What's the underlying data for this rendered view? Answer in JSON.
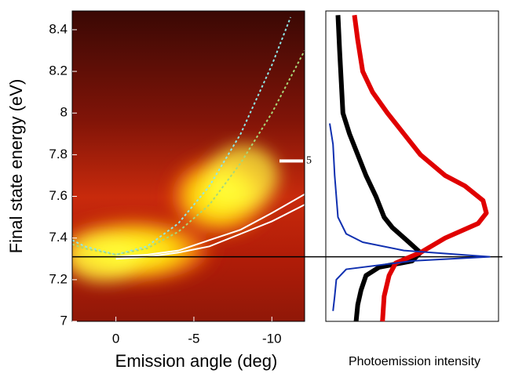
{
  "chart_data": [
    {
      "type": "line",
      "y_label": "Final state energy (eV)",
      "x_label": "Emission angle (deg)",
      "xlim": [
        2.8,
        -12.1
      ],
      "ylim": [
        7.0,
        8.49
      ],
      "xticks": [
        0,
        -5,
        -10
      ],
      "yticks": [
        7.0,
        7.2,
        7.4,
        7.6,
        7.8,
        8.0,
        8.2,
        8.4
      ],
      "hline": 7.31,
      "annotation": {
        "text": "5",
        "y": 7.77
      },
      "series": [
        {
          "color": "#8fe8e8",
          "dashed": true,
          "x": [
            2.8,
            2,
            0,
            -2,
            -4,
            -6,
            -8,
            -10,
            -11.2
          ],
          "values": [
            7.39,
            7.36,
            7.32,
            7.36,
            7.47,
            7.65,
            7.9,
            8.23,
            8.46
          ]
        },
        {
          "color": "#a8d878",
          "dashed": true,
          "x": [
            2.8,
            2,
            0,
            -2,
            -4,
            -6,
            -8,
            -10,
            -12.1
          ],
          "values": [
            7.37,
            7.35,
            7.32,
            7.35,
            7.43,
            7.56,
            7.76,
            8.0,
            8.3
          ]
        },
        {
          "color": "#ffffff",
          "dashed": false,
          "x": [
            0,
            -2,
            -4,
            -6,
            -8,
            -10,
            -12.1
          ],
          "values": [
            7.31,
            7.32,
            7.34,
            7.39,
            7.44,
            7.52,
            7.61
          ]
        },
        {
          "color": "#ffffff",
          "dashed": false,
          "x": [
            0,
            -2,
            -4,
            -6,
            -8,
            -10,
            -12.1
          ],
          "values": [
            7.3,
            7.31,
            7.33,
            7.36,
            7.42,
            7.48,
            7.56
          ]
        }
      ]
    },
    {
      "type": "profile",
      "x_label": "Photoemission intensity",
      "xlim": [
        0,
        1
      ],
      "ylim": [
        7.0,
        8.49
      ],
      "series": [
        {
          "color": "#000000",
          "x": [
            0.05,
            0.06,
            0.08,
            0.12,
            0.17,
            0.22,
            0.28,
            0.33,
            0.38,
            0.48,
            0.55,
            0.5,
            0.3,
            0.22,
            0.19,
            0.17,
            0.16
          ],
          "values": [
            8.47,
            8.3,
            8.0,
            7.9,
            7.8,
            7.7,
            7.6,
            7.5,
            7.45,
            7.38,
            7.33,
            7.29,
            7.26,
            7.22,
            7.15,
            7.08,
            7.0
          ]
        },
        {
          "color": "#e00000",
          "x": [
            0.15,
            0.17,
            0.2,
            0.26,
            0.35,
            0.45,
            0.55,
            0.7,
            0.82,
            0.93,
            0.95,
            0.9,
            0.7,
            0.55,
            0.4,
            0.36,
            0.33,
            0.32
          ],
          "values": [
            8.47,
            8.35,
            8.2,
            8.1,
            8.0,
            7.9,
            7.8,
            7.7,
            7.65,
            7.58,
            7.52,
            7.47,
            7.4,
            7.33,
            7.28,
            7.22,
            7.12,
            7.0
          ]
        },
        {
          "color": "#1030b0",
          "x": [
            0.0,
            0.02,
            0.03,
            0.05,
            0.1,
            0.2,
            0.45,
            0.97,
            0.5,
            0.1,
            0.04,
            0.03,
            0.02
          ],
          "values": [
            7.95,
            7.85,
            7.7,
            7.5,
            7.42,
            7.38,
            7.34,
            7.31,
            7.29,
            7.25,
            7.2,
            7.12,
            7.05
          ]
        }
      ]
    }
  ]
}
